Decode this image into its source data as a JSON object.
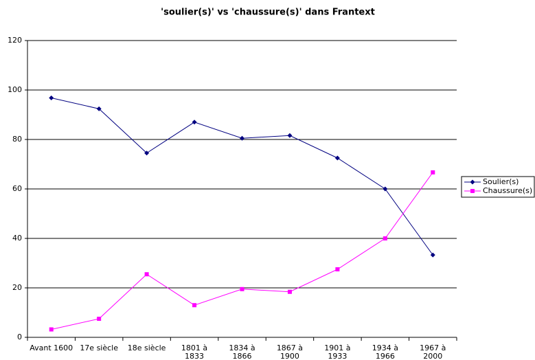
{
  "chart_data": {
    "type": "line",
    "title": "'soulier(s)' vs 'chaussure(s)' dans Frantext",
    "categories": [
      "Avant 1600",
      "17e siècle",
      "18e siècle",
      "1801 à 1833",
      "1834 à 1866",
      "1867 à 1900",
      "1901 à 1933",
      "1934 à 1966",
      "1967 à 2000"
    ],
    "series": [
      {
        "name": "Soulier(s)",
        "color": "#000080",
        "marker": "diamond",
        "values": [
          96.8,
          92.4,
          74.5,
          87,
          80.5,
          81.6,
          72.5,
          60,
          33.3
        ]
      },
      {
        "name": "Chaussure(s)",
        "color": "#ff00ff",
        "marker": "square",
        "values": [
          3.2,
          7.5,
          25.5,
          13,
          19.5,
          18.4,
          27.5,
          40,
          66.7
        ]
      }
    ],
    "ylim": [
      0,
      120
    ],
    "yticks": [
      0,
      20,
      40,
      60,
      80,
      100,
      120
    ],
    "grid": true,
    "legend": "right"
  }
}
